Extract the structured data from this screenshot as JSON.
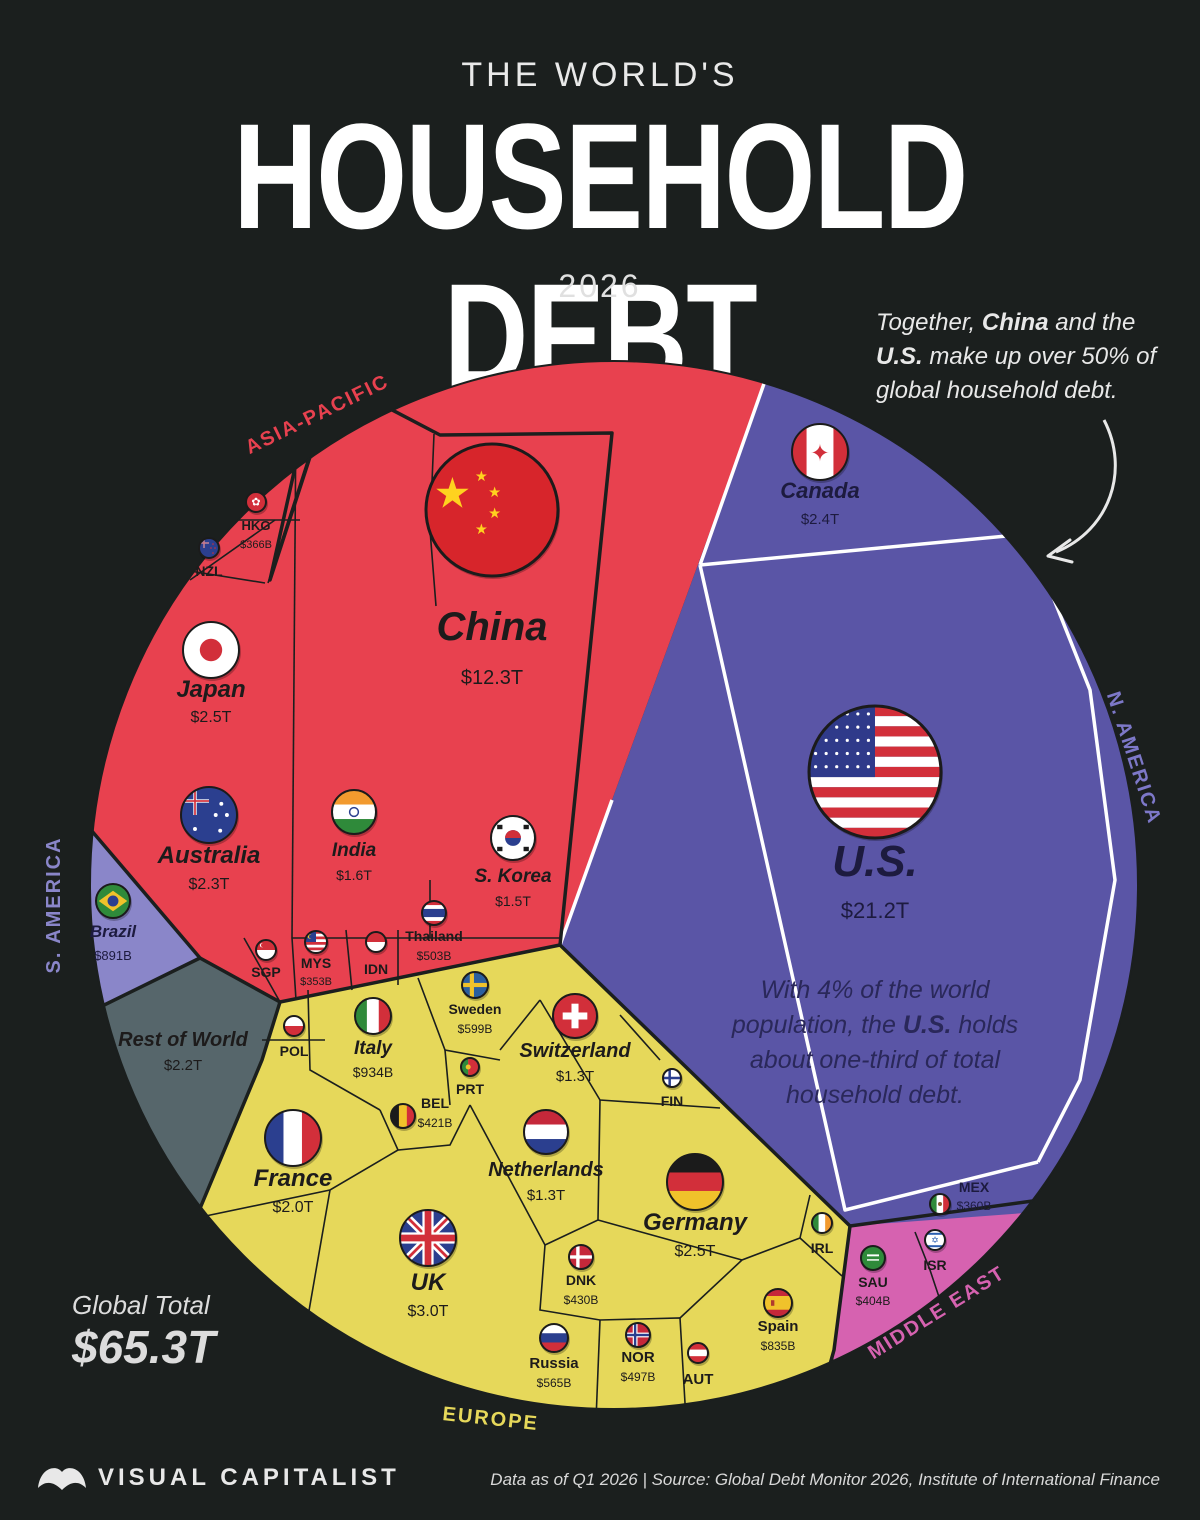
{
  "header": {
    "pretitle": "THE WORLD'S",
    "title": "HOUSEHOLD DEBT",
    "year": "2026"
  },
  "callout": {
    "part1": "Together, ",
    "bold1": "China",
    "part2": " and the ",
    "bold2": "U.S.",
    "part3": " make up over 50% of global household debt."
  },
  "us_note": {
    "line1": "With 4% of the world",
    "line2a": "population, the ",
    "line2b": "U.S.",
    "line2c": " holds",
    "line3": "about one-third of total",
    "line4": "household debt."
  },
  "global_total": {
    "label": "Global Total",
    "value": "$65.3T"
  },
  "footer": {
    "brand": "VISUAL CAPITALIST",
    "source": "Data as of Q1 2026  |  Source: Global Debt Monitor 2026, Institute of International Finance"
  },
  "colors": {
    "background": "#1b1f1e",
    "asia_pacific": "#e8414f",
    "north_america": "#5a55a6",
    "south_america": "#8a86c9",
    "europe": "#e6d85a",
    "middle_east": "#d662b0",
    "rest_of_world": "#56666b",
    "border_major": "#ffffff",
    "border_minor": "#1b1f1e"
  },
  "chart_data": {
    "type": "voronoi-treemap",
    "title": "HOUSEHOLD DEBT",
    "total": "$65.3T",
    "regions": [
      {
        "name": "ASIA-PACIFIC",
        "color": "#e8414f"
      },
      {
        "name": "N. AMERICA",
        "color": "#5a55a6"
      },
      {
        "name": "S. AMERICA",
        "color": "#8a86c9"
      },
      {
        "name": "EUROPE",
        "color": "#e6d85a"
      },
      {
        "name": "MIDDLE EAST",
        "color": "#d662b0"
      }
    ],
    "cells": [
      {
        "label": "U.S.",
        "value": "$21.2T",
        "region": "N. AMERICA",
        "flag": "us-flag-icon"
      },
      {
        "label": "China",
        "value": "$12.3T",
        "region": "ASIA-PACIFIC",
        "flag": "china-flag-icon"
      },
      {
        "label": "UK",
        "value": "$3.0T",
        "region": "EUROPE",
        "flag": "uk-flag-icon"
      },
      {
        "label": "Japan",
        "value": "$2.5T",
        "region": "ASIA-PACIFIC",
        "flag": "japan-flag-icon"
      },
      {
        "label": "Germany",
        "value": "$2.5T",
        "region": "EUROPE",
        "flag": "germany-flag-icon"
      },
      {
        "label": "Canada",
        "value": "$2.4T",
        "region": "N. AMERICA",
        "flag": "canada-flag-icon"
      },
      {
        "label": "Australia",
        "value": "$2.3T",
        "region": "ASIA-PACIFIC",
        "flag": "australia-flag-icon"
      },
      {
        "label": "Rest of World",
        "value": "$2.2T",
        "region": "",
        "flag": ""
      },
      {
        "label": "France",
        "value": "$2.0T",
        "region": "EUROPE",
        "flag": "france-flag-icon"
      },
      {
        "label": "India",
        "value": "$1.6T",
        "region": "ASIA-PACIFIC",
        "flag": "india-flag-icon"
      },
      {
        "label": "S. Korea",
        "value": "$1.5T",
        "region": "ASIA-PACIFIC",
        "flag": "south-korea-flag-icon"
      },
      {
        "label": "Switzerland",
        "value": "$1.3T",
        "region": "EUROPE",
        "flag": "switzerland-flag-icon"
      },
      {
        "label": "Netherlands",
        "value": "$1.3T",
        "region": "EUROPE",
        "flag": "netherlands-flag-icon"
      },
      {
        "label": "Italy",
        "value": "$934B",
        "region": "EUROPE",
        "flag": "italy-flag-icon"
      },
      {
        "label": "Brazil",
        "value": "$891B",
        "region": "S. AMERICA",
        "flag": "brazil-flag-icon"
      },
      {
        "label": "Spain",
        "value": "$835B",
        "region": "EUROPE",
        "flag": "spain-flag-icon"
      },
      {
        "label": "Sweden",
        "value": "$599B",
        "region": "EUROPE",
        "flag": "sweden-flag-icon"
      },
      {
        "label": "Russia",
        "value": "$565B",
        "region": "EUROPE",
        "flag": "russia-flag-icon"
      },
      {
        "label": "Thailand",
        "value": "$503B",
        "region": "ASIA-PACIFIC",
        "flag": "thailand-flag-icon"
      },
      {
        "label": "NOR",
        "value": "$497B",
        "region": "EUROPE",
        "flag": "norway-flag-icon"
      },
      {
        "label": "DNK",
        "value": "$430B",
        "region": "EUROPE",
        "flag": "denmark-flag-icon"
      },
      {
        "label": "BEL",
        "value": "$421B",
        "region": "EUROPE",
        "flag": "belgium-flag-icon"
      },
      {
        "label": "SAU",
        "value": "$404B",
        "region": "MIDDLE EAST",
        "flag": "saudi-flag-icon"
      },
      {
        "label": "HKG",
        "value": "$366B",
        "region": "ASIA-PACIFIC",
        "flag": "hong-kong-flag-icon"
      },
      {
        "label": "MEX",
        "value": "$360B",
        "region": "N. AMERICA",
        "flag": "mexico-flag-icon"
      },
      {
        "label": "MYS",
        "value": "$353B",
        "region": "ASIA-PACIFIC",
        "flag": "malaysia-flag-icon"
      },
      {
        "label": "NZL",
        "value": "",
        "region": "ASIA-PACIFIC",
        "flag": "new-zealand-flag-icon"
      },
      {
        "label": "SGP",
        "value": "",
        "region": "ASIA-PACIFIC",
        "flag": "singapore-flag-icon"
      },
      {
        "label": "IDN",
        "value": "",
        "region": "ASIA-PACIFIC",
        "flag": "indonesia-flag-icon"
      },
      {
        "label": "POL",
        "value": "",
        "region": "EUROPE",
        "flag": "poland-flag-icon"
      },
      {
        "label": "PRT",
        "value": "",
        "region": "EUROPE",
        "flag": "portugal-flag-icon"
      },
      {
        "label": "FIN",
        "value": "",
        "region": "EUROPE",
        "flag": "finland-flag-icon"
      },
      {
        "label": "IRL",
        "value": "",
        "region": "EUROPE",
        "flag": "ireland-flag-icon"
      },
      {
        "label": "AUT",
        "value": "",
        "region": "EUROPE",
        "flag": "austria-flag-icon"
      },
      {
        "label": "ISR",
        "value": "",
        "region": "MIDDLE EAST",
        "flag": "israel-flag-icon"
      }
    ]
  }
}
